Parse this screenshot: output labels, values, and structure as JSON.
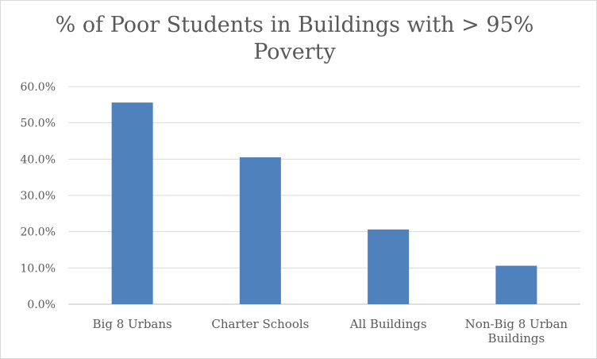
{
  "chart_data": {
    "type": "bar",
    "title": "% of Poor Students in Buildings with > 95% Poverty",
    "categories": [
      "Big 8 Urbans",
      "Charter Schools",
      "All Buildings",
      "Non-Big 8 Urban Buildings"
    ],
    "values": [
      55.6,
      40.5,
      20.6,
      10.6
    ],
    "yticks": [
      "0.0%",
      "10.0%",
      "20.0%",
      "30.0%",
      "40.0%",
      "50.0%",
      "60.0%"
    ],
    "ylim": [
      0,
      60
    ],
    "grid": true,
    "legend": "none",
    "bar_color": "#4f81bd",
    "grid_color": "#d9d9d9",
    "axis_color": "#bfbfbf"
  }
}
